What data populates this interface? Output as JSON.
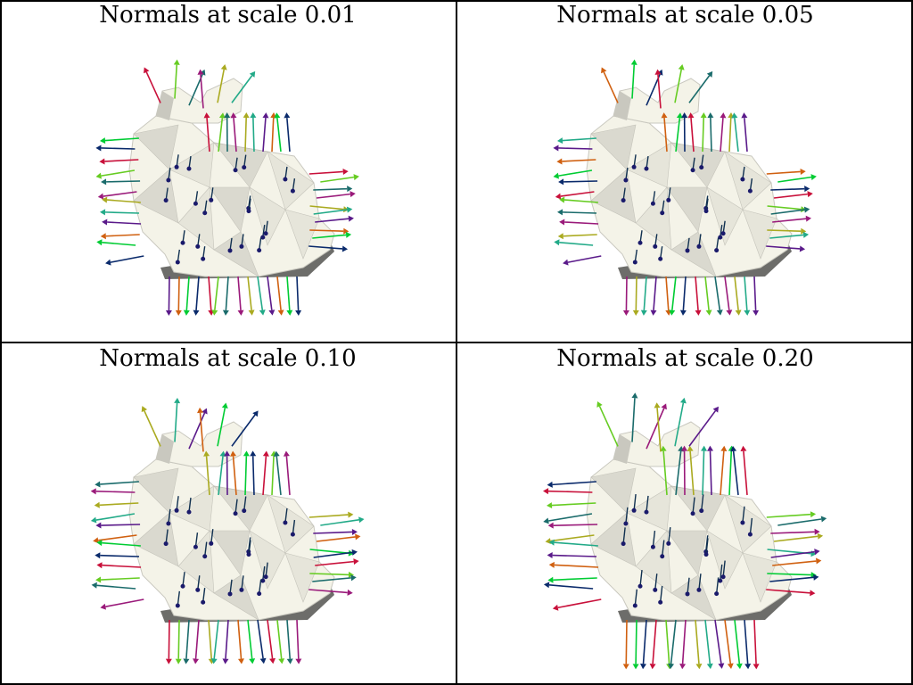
{
  "panels": [
    {
      "title": "Normals at scale 0.01",
      "scale": 0.01,
      "arrow_length": 1.0
    },
    {
      "title": "Normals at scale 0.05",
      "scale": 0.05,
      "arrow_length": 1.0
    },
    {
      "title": "Normals at scale 0.10",
      "scale": 0.1,
      "arrow_length": 1.15
    },
    {
      "title": "Normals at scale 0.20",
      "scale": 0.2,
      "arrow_length": 1.3
    }
  ],
  "colors": {
    "background": "#ffffff",
    "border": "#000000",
    "mesh_light": "#f4f3e8",
    "mesh_mid": "#c9c8bf",
    "mesh_dark": "#6d6d6a",
    "arrow_palette": [
      "#00cc33",
      "#22aa88",
      "#1a6b6b",
      "#0a2a6b",
      "#5a1a8a",
      "#9a1a7a",
      "#c8103a",
      "#d06010",
      "#aaaa20",
      "#66cc22"
    ]
  }
}
